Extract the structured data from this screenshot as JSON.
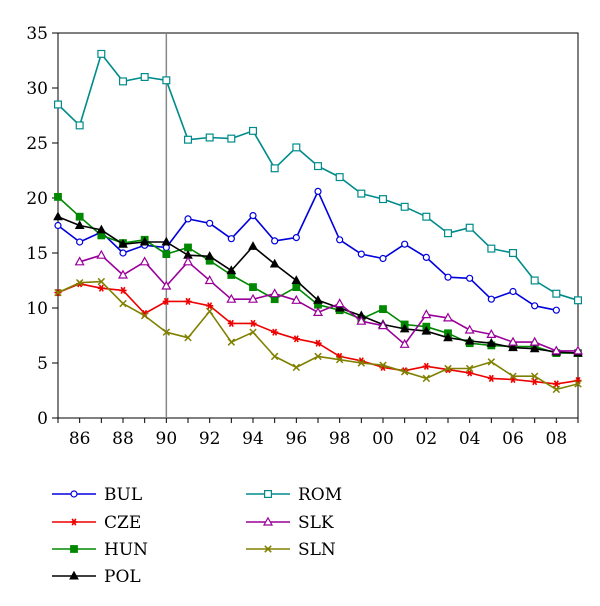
{
  "chart_data": {
    "type": "line",
    "title": "",
    "xlabel": "",
    "ylabel": "",
    "x": [
      1985,
      1986,
      1987,
      1988,
      1989,
      1990,
      1991,
      1992,
      1993,
      1994,
      1995,
      1996,
      1997,
      1998,
      1999,
      2000,
      2001,
      2002,
      2003,
      2004,
      2005,
      2006,
      2007,
      2008,
      2009
    ],
    "xlim": [
      1985,
      2009
    ],
    "ylim": [
      0,
      35
    ],
    "x_ticks": [
      {
        "value": 1986,
        "label": "86"
      },
      {
        "value": 1988,
        "label": "88"
      },
      {
        "value": 1990,
        "label": "90"
      },
      {
        "value": 1992,
        "label": "92"
      },
      {
        "value": 1994,
        "label": "94"
      },
      {
        "value": 1996,
        "label": "96"
      },
      {
        "value": 1998,
        "label": "98"
      },
      {
        "value": 2000,
        "label": "00"
      },
      {
        "value": 2002,
        "label": "02"
      },
      {
        "value": 2004,
        "label": "04"
      },
      {
        "value": 2006,
        "label": "06"
      },
      {
        "value": 2008,
        "label": "08"
      }
    ],
    "y_ticks": [
      0,
      5,
      10,
      15,
      20,
      25,
      30,
      35
    ],
    "reference_line_x": 1990,
    "grid": false,
    "legend_position": "bottom",
    "series": [
      {
        "name": "BUL",
        "color": "#0000dd",
        "marker": "circle",
        "x": [
          1985,
          1986,
          1987,
          1988,
          1989,
          1990,
          1991,
          1992,
          1993,
          1994,
          1995,
          1996,
          1997,
          1998,
          1999,
          2000,
          2001,
          2002,
          2003,
          2004,
          2005,
          2006,
          2007,
          2008
        ],
        "values": [
          17.5,
          16.0,
          16.9,
          15.0,
          15.7,
          15.5,
          18.1,
          17.7,
          16.3,
          18.4,
          16.1,
          16.4,
          20.6,
          16.2,
          14.9,
          14.5,
          15.8,
          14.6,
          12.8,
          12.7,
          10.8,
          11.5,
          10.2,
          9.8
        ]
      },
      {
        "name": "CZE",
        "color": "#ee0000",
        "marker": "asterisk",
        "x": [
          1985,
          1986,
          1987,
          1988,
          1989,
          1990,
          1991,
          1992,
          1993,
          1994,
          1995,
          1996,
          1997,
          1998,
          1999,
          2000,
          2001,
          2002,
          2003,
          2004,
          2005,
          2006,
          2007,
          2008,
          2009
        ],
        "values": [
          11.4,
          12.2,
          11.8,
          11.6,
          9.5,
          10.6,
          10.6,
          10.2,
          8.6,
          8.6,
          7.8,
          7.2,
          6.8,
          5.6,
          5.2,
          4.6,
          4.3,
          4.7,
          4.4,
          4.1,
          3.6,
          3.5,
          3.3,
          3.1,
          3.4
        ]
      },
      {
        "name": "HUN",
        "color": "#008800",
        "marker": "square-filled",
        "x": [
          1985,
          1986,
          1987,
          1988,
          1989,
          1990,
          1991,
          1992,
          1993,
          1994,
          1995,
          1996,
          1997,
          1998,
          1999,
          2000,
          2001,
          2002,
          2003,
          2004,
          2005,
          2006,
          2007,
          2008,
          2009
        ],
        "values": [
          20.1,
          18.3,
          16.6,
          15.9,
          16.2,
          14.9,
          15.5,
          14.3,
          13.0,
          11.9,
          10.8,
          11.9,
          10.3,
          9.8,
          9.0,
          9.9,
          8.5,
          8.3,
          7.7,
          6.8,
          6.6,
          6.5,
          6.5,
          5.9,
          5.9
        ]
      },
      {
        "name": "POL",
        "color": "#000000",
        "marker": "triangle-filled",
        "x": [
          1985,
          1986,
          1987,
          1988,
          1989,
          1990,
          1991,
          1992,
          1993,
          1994,
          1995,
          1996,
          1997,
          1998,
          1999,
          2000,
          2001,
          2002,
          2003,
          2004,
          2005,
          2006,
          2007,
          2008,
          2009
        ],
        "values": [
          18.3,
          17.5,
          17.1,
          15.8,
          16.0,
          16.0,
          14.8,
          14.7,
          13.4,
          15.6,
          14.0,
          12.5,
          10.7,
          10.0,
          9.3,
          8.5,
          8.1,
          7.9,
          7.3,
          7.0,
          6.8,
          6.4,
          6.3,
          6.0,
          5.9
        ]
      },
      {
        "name": "ROM",
        "color": "#008b8b",
        "marker": "square-open",
        "x": [
          1985,
          1986,
          1987,
          1988,
          1989,
          1990,
          1991,
          1992,
          1993,
          1994,
          1995,
          1996,
          1997,
          1998,
          1999,
          2000,
          2001,
          2002,
          2003,
          2004,
          2005,
          2006,
          2007,
          2008,
          2009
        ],
        "values": [
          28.5,
          26.6,
          33.1,
          30.6,
          31.0,
          30.7,
          25.3,
          25.5,
          25.4,
          26.1,
          22.7,
          24.6,
          22.9,
          21.9,
          20.4,
          19.9,
          19.2,
          18.3,
          16.8,
          17.3,
          15.4,
          15.0,
          12.5,
          11.3,
          10.7
        ]
      },
      {
        "name": "SLK",
        "color": "#990099",
        "marker": "triangle-open",
        "x": [
          1986,
          1987,
          1988,
          1989,
          1990,
          1991,
          1992,
          1993,
          1994,
          1995,
          1996,
          1997,
          1998,
          1999,
          2000,
          2001,
          2002,
          2003,
          2004,
          2005,
          2006,
          2007,
          2008,
          2009
        ],
        "values": [
          14.2,
          14.8,
          13.0,
          14.2,
          12.0,
          14.2,
          12.5,
          10.8,
          10.8,
          11.3,
          10.7,
          9.6,
          10.4,
          8.8,
          8.4,
          6.7,
          9.4,
          9.1,
          8.0,
          7.6,
          6.9,
          6.9,
          6.1,
          6.1
        ]
      },
      {
        "name": "SLN",
        "color": "#808000",
        "marker": "cross",
        "x": [
          1985,
          1986,
          1987,
          1988,
          1989,
          1990,
          1991,
          1992,
          1993,
          1994,
          1995,
          1996,
          1997,
          1998,
          1999,
          2000,
          2001,
          2002,
          2003,
          2004,
          2005,
          2006,
          2007,
          2008,
          2009
        ],
        "values": [
          11.4,
          12.3,
          12.4,
          10.4,
          9.3,
          7.8,
          7.3,
          9.7,
          6.9,
          7.8,
          5.6,
          4.6,
          5.6,
          5.3,
          5.0,
          4.8,
          4.2,
          3.6,
          4.5,
          4.5,
          5.1,
          3.8,
          3.8,
          2.6,
          3.1
        ]
      }
    ]
  }
}
